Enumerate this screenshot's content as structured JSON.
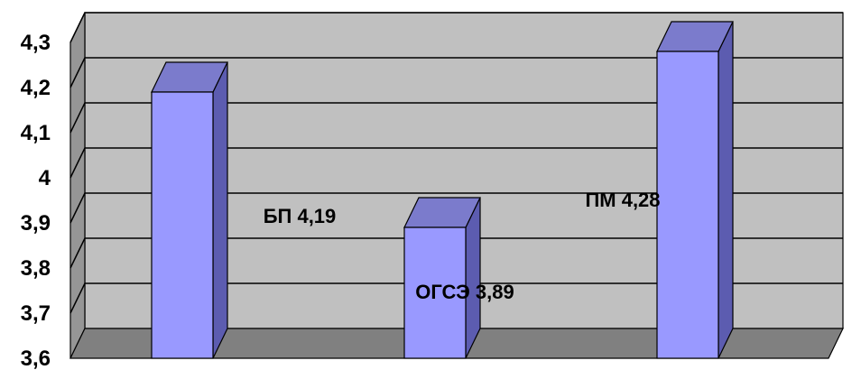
{
  "chart_data": {
    "type": "bar",
    "style": "3d-column",
    "categories": [
      "БП",
      "ОГСЭ",
      "ПМ"
    ],
    "values": [
      4.19,
      3.89,
      4.28
    ],
    "data_labels": [
      "БП 4,19",
      "ОГСЭ 3,89",
      "ПМ 4,28"
    ],
    "ylim": [
      3.6,
      4.3
    ],
    "y_ticks": [
      3.6,
      3.7,
      3.8,
      3.9,
      4,
      4.1,
      4.2,
      4.3
    ],
    "y_tick_labels": [
      "3,6",
      "3,7",
      "3,8",
      "3,9",
      "4",
      "4,1",
      "4,2",
      "4,3"
    ],
    "title": "",
    "xlabel": "",
    "ylabel": "",
    "grid": true,
    "legend": "none",
    "colors": {
      "bar_front": "#9999ff",
      "bar_top": "#7b7bcc",
      "bar_side": "#5c5cb0",
      "back_wall": "#c0c0c0",
      "side_wall": "#969696",
      "floor": "#808080",
      "gridline": "#000000"
    }
  }
}
